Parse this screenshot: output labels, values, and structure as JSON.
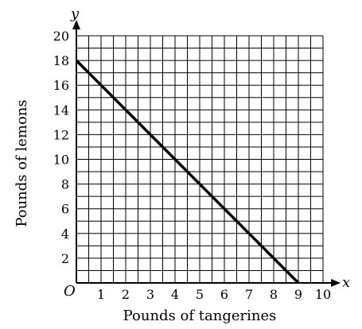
{
  "chart_data": {
    "type": "line",
    "title": "",
    "xlabel": "Pounds of tangerines",
    "ylabel": "Pounds of lemons",
    "x_axis_letter": "x",
    "y_axis_letter": "y",
    "origin_label": "O",
    "xlim": [
      0,
      10
    ],
    "ylim": [
      0,
      20
    ],
    "x_ticks": [
      "1",
      "2",
      "3",
      "4",
      "5",
      "6",
      "7",
      "8",
      "9",
      "10"
    ],
    "y_ticks": [
      "2",
      "4",
      "6",
      "8",
      "10",
      "12",
      "14",
      "16",
      "18",
      "20"
    ],
    "grid": true,
    "series": [
      {
        "x": [
          0,
          9
        ],
        "y": [
          18,
          0
        ]
      }
    ]
  }
}
